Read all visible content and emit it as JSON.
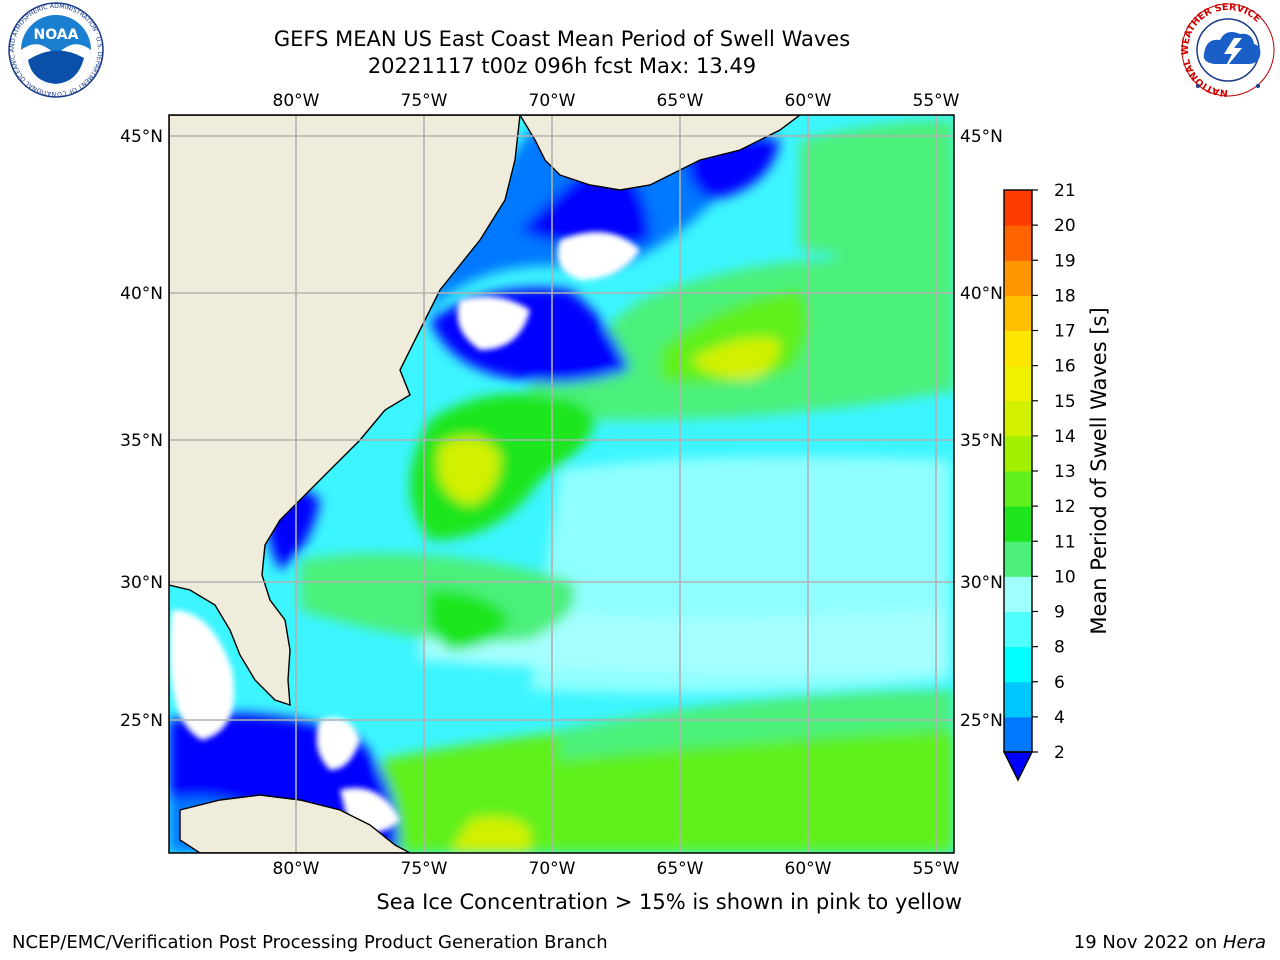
{
  "title": {
    "line1": "GEFS MEAN US East Coast Mean Period of Swell Waves",
    "line2": "20221117 t00z 096h fcst   Max: 13.49"
  },
  "map": {
    "lon_labels": [
      "80°W",
      "75°W",
      "70°W",
      "65°W",
      "60°W",
      "55°W"
    ],
    "lat_labels": [
      "45°N",
      "40°N",
      "35°N",
      "30°N",
      "25°N"
    ],
    "ocean_color": "#3cf5ff",
    "land_color": "#efecdc",
    "gridline_color": "#b0b0b0"
  },
  "colorbar": {
    "label": "Mean Period of Swell Waves [s]",
    "ticks": [
      "2",
      "4",
      "6",
      "8",
      "9",
      "10",
      "11",
      "12",
      "13",
      "14",
      "15",
      "16",
      "17",
      "18",
      "19",
      "20",
      "21"
    ],
    "colors": [
      "#0078ff",
      "#00c8ff",
      "#00ffff",
      "#50ffff",
      "#a0ffff",
      "#4cf07a",
      "#1ee61e",
      "#5ff01e",
      "#a0f000",
      "#d2f000",
      "#f0f000",
      "#ffe600",
      "#ffbe00",
      "#ff9600",
      "#ff6400",
      "#ff3c00",
      "#ff0000"
    ],
    "extend_color": "#0000ff"
  },
  "caption": "Sea Ice Concentration > 15% is shown in pink to yellow",
  "footer": {
    "left": "NCEP/EMC/Verification Post Processing Product Generation Branch",
    "right_prefix": "19 Nov 2022 on ",
    "right_host": "Hera"
  },
  "logos": {
    "noaa": "NOAA",
    "noaa_ring": "NATIONAL OCEANIC AND ATMOSPHERIC ADMINISTRATION · U.S. DEPARTMENT OF COMMERCE",
    "nws_ring": "NATIONAL WEATHER SERVICE"
  }
}
